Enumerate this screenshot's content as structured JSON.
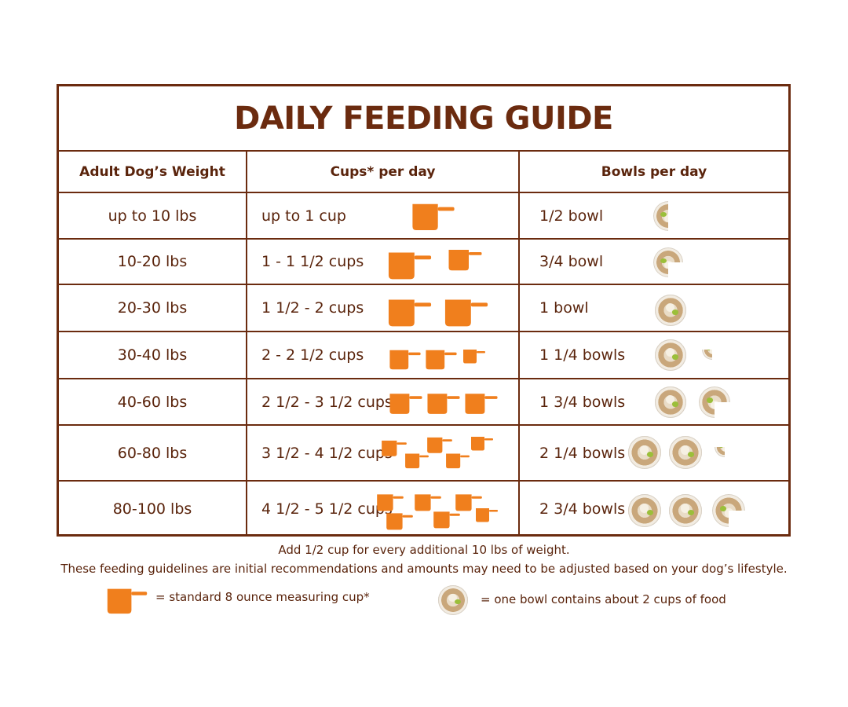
{
  "title": "DAILY FEEDING GUIDE",
  "headers": {
    "weight": "Adult Dog’s Weight",
    "cups": "Cups* per day",
    "bowls": "Bowls per day"
  },
  "rows": [
    {
      "weight": "up to 10 lbs",
      "cups": "up to 1 cup",
      "bowls": "1/2 bowl",
      "cup_icons": 1,
      "bowl_amount": 0.5
    },
    {
      "weight": "10-20 lbs",
      "cups": "1 - 1 1/2 cups",
      "bowls": "3/4 bowl",
      "cup_icons": 2,
      "bowl_amount": 0.75
    },
    {
      "weight": "20-30 lbs",
      "cups": "1 1/2 - 2 cups",
      "bowls": "1 bowl",
      "cup_icons": 2,
      "bowl_amount": 1
    },
    {
      "weight": "30-40 lbs",
      "cups": "2 - 2 1/2 cups",
      "bowls": "1 1/4 bowls",
      "cup_icons": 3,
      "bowl_amount": 1.25
    },
    {
      "weight": "40-60 lbs",
      "cups": "2 1/2 - 3 1/2 cups",
      "bowls": "1 3/4 bowls",
      "cup_icons": 3,
      "bowl_amount": 1.75
    },
    {
      "weight": "60-80 lbs",
      "cups": "3 1/2 - 4 1/2 cups",
      "bowls": "2 1/4 bowls",
      "cup_icons": 5,
      "bowl_amount": 2.25
    },
    {
      "weight": "80-100 lbs",
      "cups": "4 1/2 - 5 1/2 cups",
      "bowls": "2 3/4 bowls",
      "cup_icons": 6,
      "bowl_amount": 2.75
    }
  ],
  "notes": {
    "line1": "Add 1/2 cup for every additional 10 lbs of weight.",
    "line2": "These feeding guidelines are initial recommendations and amounts may need to be adjusted based on your dog’s lifestyle."
  },
  "legend": {
    "cup_text": "= standard 8 ounce measuring cup*",
    "bowl_text": "= one bowl contains about 2 cups of food"
  },
  "colors": {
    "brown": "#6b2b0f",
    "cup_orange": "#f07f1d"
  },
  "icons": {
    "cup": "measuring-cup-icon",
    "bowl": "food-bowl-icon"
  }
}
